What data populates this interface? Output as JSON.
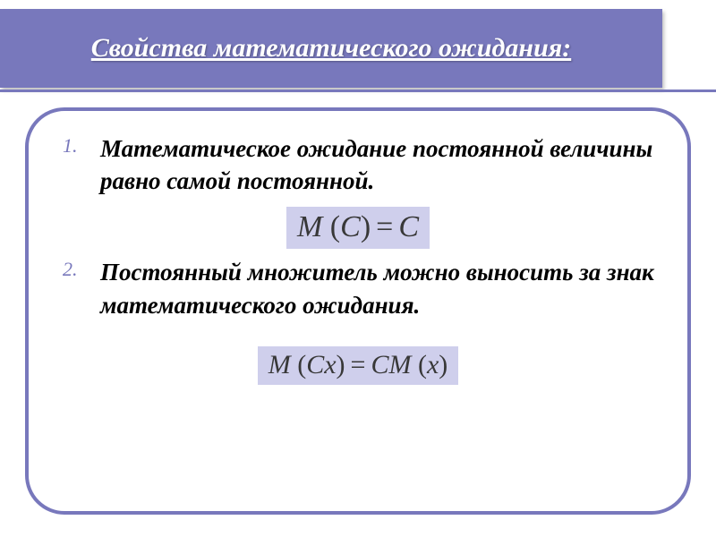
{
  "header": {
    "title": "Свойства математического ожидания:"
  },
  "items": [
    {
      "text": "Математическое ожидание постоянной величины равно самой постоянной.",
      "formula_html": "<span class='var'>M</span><span class='paren'>&nbsp;(</span><span class='var'>C</span><span class='paren'>)</span><span class='eq'>=</span><span class='var'>C</span>",
      "formula_size": "lg"
    },
    {
      "text": "Постоянный множитель можно выносить за знак математического ожидания.",
      "formula_html": "<span class='var'>M</span><span class='paren'>&nbsp;(</span><span class='var'>Cx</span><span class='paren'>)</span><span class='eq'>=</span><span class='var'>CM</span><span class='paren'>&nbsp;(</span><span class='var'>x</span><span class='paren'>)</span>",
      "formula_size": "sm"
    }
  ],
  "colors": {
    "accent": "#7878bc",
    "formula_bg": "#cfcfec",
    "text": "#000000",
    "formula_text": "#383838"
  }
}
